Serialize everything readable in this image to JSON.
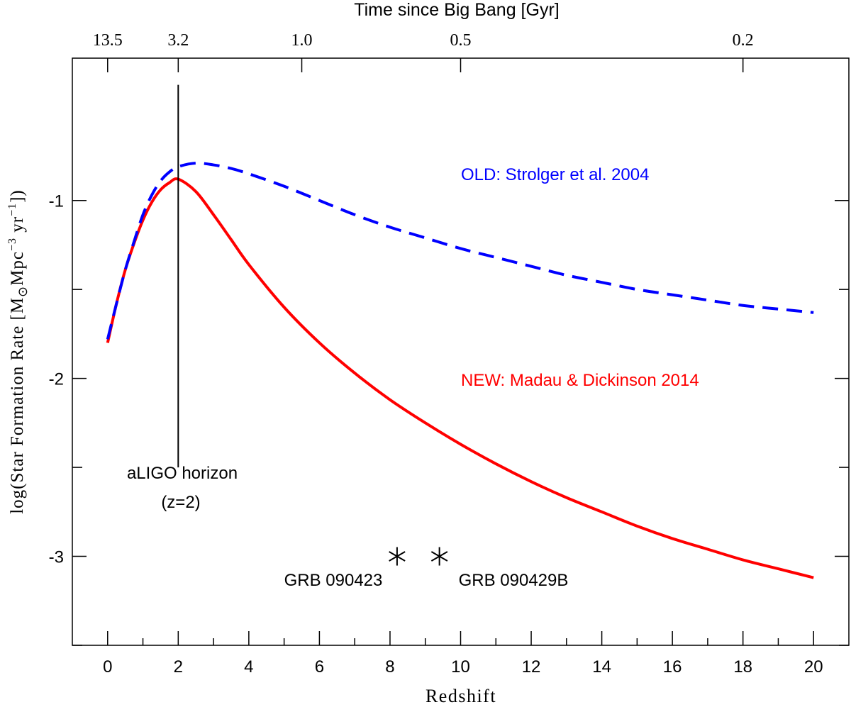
{
  "chart_data": {
    "type": "line",
    "xlabel": "Redshift",
    "ylabel_prefix": "log(Star Formation Rate [M",
    "ylabel_sub": "⊙",
    "ylabel_mid": "Mpc",
    "ylabel_exp1": "−3",
    "ylabel_mid2": " yr",
    "ylabel_exp2": "−1",
    "ylabel_suffix": "])",
    "top_axis_title": "Time since Big Bang [Gyr]",
    "xlim": [
      -1,
      21
    ],
    "ylim": [
      -3.5,
      -0.2
    ],
    "x_ticks": [
      0,
      2,
      4,
      6,
      8,
      10,
      12,
      14,
      16,
      18,
      20
    ],
    "x_tick_labels": [
      "0",
      "2",
      "4",
      "6",
      "8",
      "10",
      "12",
      "14",
      "16",
      "18",
      "20"
    ],
    "y_ticks": [
      -1,
      -2,
      -3
    ],
    "y_tick_labels": [
      "-1",
      "-2",
      "-3"
    ],
    "top_ticks": [
      {
        "z": 0,
        "label": "13.5"
      },
      {
        "z": 2,
        "label": "3.2"
      },
      {
        "z": 5.5,
        "label": "1.0"
      },
      {
        "z": 10,
        "label": "0.5"
      },
      {
        "z": 18,
        "label": "0.2"
      }
    ],
    "series": [
      {
        "name": "NEW: Madau & Dickinson 2014",
        "color": "#ff0000",
        "style": "solid",
        "x": [
          0,
          0.25,
          0.5,
          0.75,
          1,
          1.25,
          1.5,
          1.75,
          2,
          2.5,
          3,
          3.5,
          4,
          5,
          6,
          7,
          8,
          9,
          10,
          11,
          12,
          13,
          14,
          15,
          16,
          17,
          18,
          19,
          20
        ],
        "y": [
          -1.8,
          -1.58,
          -1.39,
          -1.24,
          -1.11,
          -1.01,
          -0.94,
          -0.9,
          -0.88,
          -0.95,
          -1.08,
          -1.22,
          -1.36,
          -1.6,
          -1.8,
          -1.97,
          -2.12,
          -2.25,
          -2.37,
          -2.48,
          -2.58,
          -2.67,
          -2.75,
          -2.83,
          -2.9,
          -2.96,
          -3.02,
          -3.07,
          -3.12
        ]
      },
      {
        "name": "OLD: Strolger et al. 2004",
        "color": "#0000ff",
        "style": "dashed",
        "x": [
          0,
          0.25,
          0.5,
          0.75,
          1,
          1.25,
          1.5,
          1.75,
          2,
          2.5,
          3,
          3.5,
          4,
          5,
          6,
          7,
          8,
          9,
          10,
          11,
          12,
          13,
          14,
          15,
          16,
          17,
          18,
          19,
          20
        ],
        "y": [
          -1.78,
          -1.58,
          -1.39,
          -1.23,
          -1.08,
          -0.97,
          -0.89,
          -0.84,
          -0.81,
          -0.79,
          -0.8,
          -0.82,
          -0.85,
          -0.92,
          -1.0,
          -1.08,
          -1.15,
          -1.21,
          -1.27,
          -1.32,
          -1.37,
          -1.42,
          -1.46,
          -1.5,
          -1.53,
          -1.56,
          -1.59,
          -1.61,
          -1.63
        ]
      }
    ],
    "points": [
      {
        "name": "GRB 090423",
        "x": 8.2,
        "y": -3.0
      },
      {
        "name": "GRB 090429B",
        "x": 9.4,
        "y": -3.0
      }
    ],
    "horizon": {
      "x": 2,
      "y_top": -0.35,
      "y_bottom": -2.5,
      "label_line1": "aLIGO horizon",
      "label_line2": "(z=2)"
    },
    "label_new": "NEW: Madau & Dickinson 2014",
    "label_old": "OLD: Strolger et al. 2004",
    "colors": {
      "new": "#ff0000",
      "old": "#0000ff",
      "axis": "#000000"
    }
  }
}
